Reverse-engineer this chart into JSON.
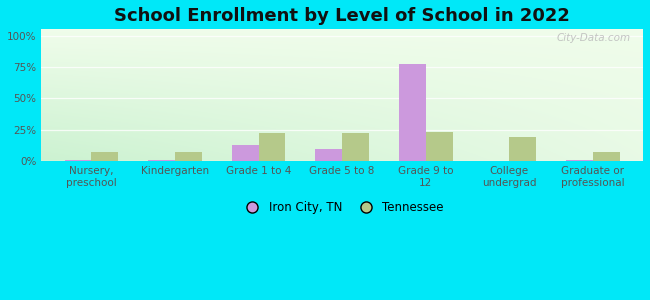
{
  "title": "School Enrollment by Level of School in 2022",
  "categories": [
    "Nursery,\npreschool",
    "Kindergarten",
    "Grade 1 to 4",
    "Grade 5 to 8",
    "Grade 9 to\n12",
    "College\nundergrad",
    "Graduate or\nprofessional"
  ],
  "iron_city": [
    0.5,
    0.5,
    13.0,
    10.0,
    77.0,
    0.0,
    0.5
  ],
  "tennessee": [
    7.0,
    7.0,
    22.0,
    22.0,
    23.0,
    19.0,
    7.0
  ],
  "iron_city_color": "#cc99dd",
  "tennessee_color": "#b5c98a",
  "background_outer": "#00e8f8",
  "background_inner_left": "#e8f5e0",
  "background_inner_right": "#d4f0d8",
  "yticks": [
    0,
    25,
    50,
    75,
    100
  ],
  "ylim": [
    0,
    105
  ],
  "bar_width": 0.32,
  "legend_iron_city": "Iron City, TN",
  "legend_tennessee": "Tennessee",
  "title_fontsize": 13,
  "tick_fontsize": 7.5,
  "legend_fontsize": 8.5,
  "watermark": "City-Data.com"
}
